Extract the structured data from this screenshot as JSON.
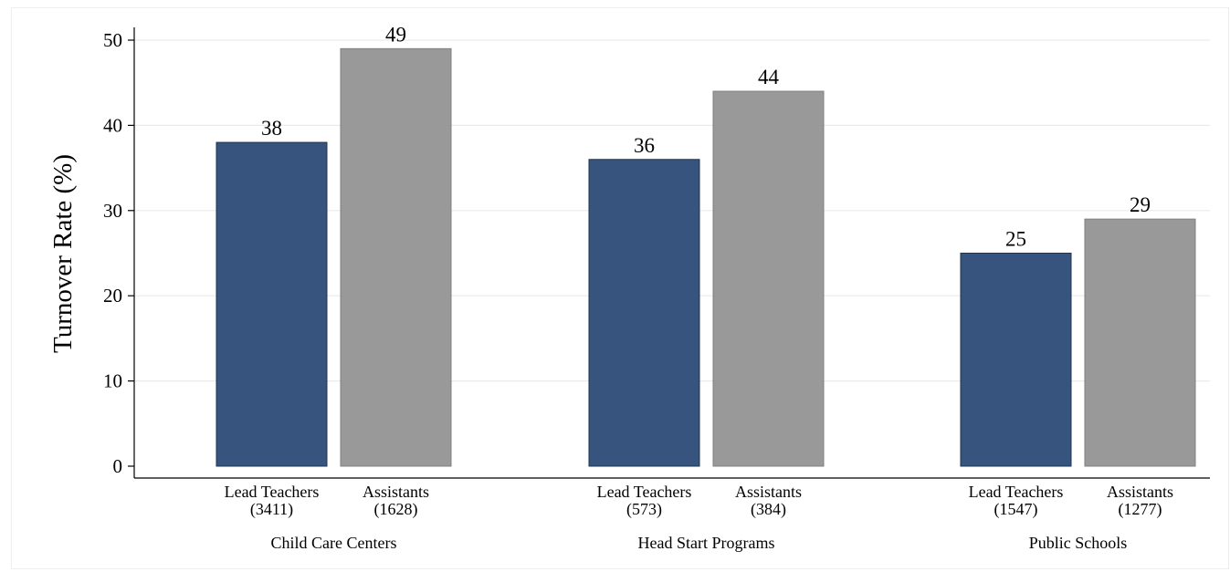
{
  "chart_data": {
    "type": "bar",
    "ylabel": "Turnover Rate (%)",
    "ylim": [
      0,
      51
    ],
    "yticks": [
      0,
      10,
      20,
      30,
      40,
      50
    ],
    "grid": true,
    "legend": "none",
    "groups": [
      {
        "label": "Child Care Centers",
        "bars": [
          {
            "label": "Lead Teachers",
            "n": "(3411)",
            "value": 38,
            "value_label": "38",
            "series": "lead"
          },
          {
            "label": "Assistants",
            "n": "(1628)",
            "value": 49,
            "value_label": "49",
            "series": "assistant"
          }
        ]
      },
      {
        "label": "Head Start Programs",
        "bars": [
          {
            "label": "Lead Teachers",
            "n": "(573)",
            "value": 36,
            "value_label": "36",
            "series": "lead"
          },
          {
            "label": "Assistants",
            "n": "(384)",
            "value": 44,
            "value_label": "44",
            "series": "assistant"
          }
        ]
      },
      {
        "label": "Public Schools",
        "bars": [
          {
            "label": "Lead Teachers",
            "n": "(1547)",
            "value": 25,
            "value_label": "25",
            "series": "lead"
          },
          {
            "label": "Assistants",
            "n": "(1277)",
            "value": 29,
            "value_label": "29",
            "series": "assistant"
          }
        ]
      }
    ],
    "colors": {
      "lead": "#36547e",
      "assistant": "#999999",
      "lead_border": "#1f3452",
      "assistant_border": "#7f7f7f",
      "grid": "#eaeaea",
      "axis": "#000000"
    }
  }
}
